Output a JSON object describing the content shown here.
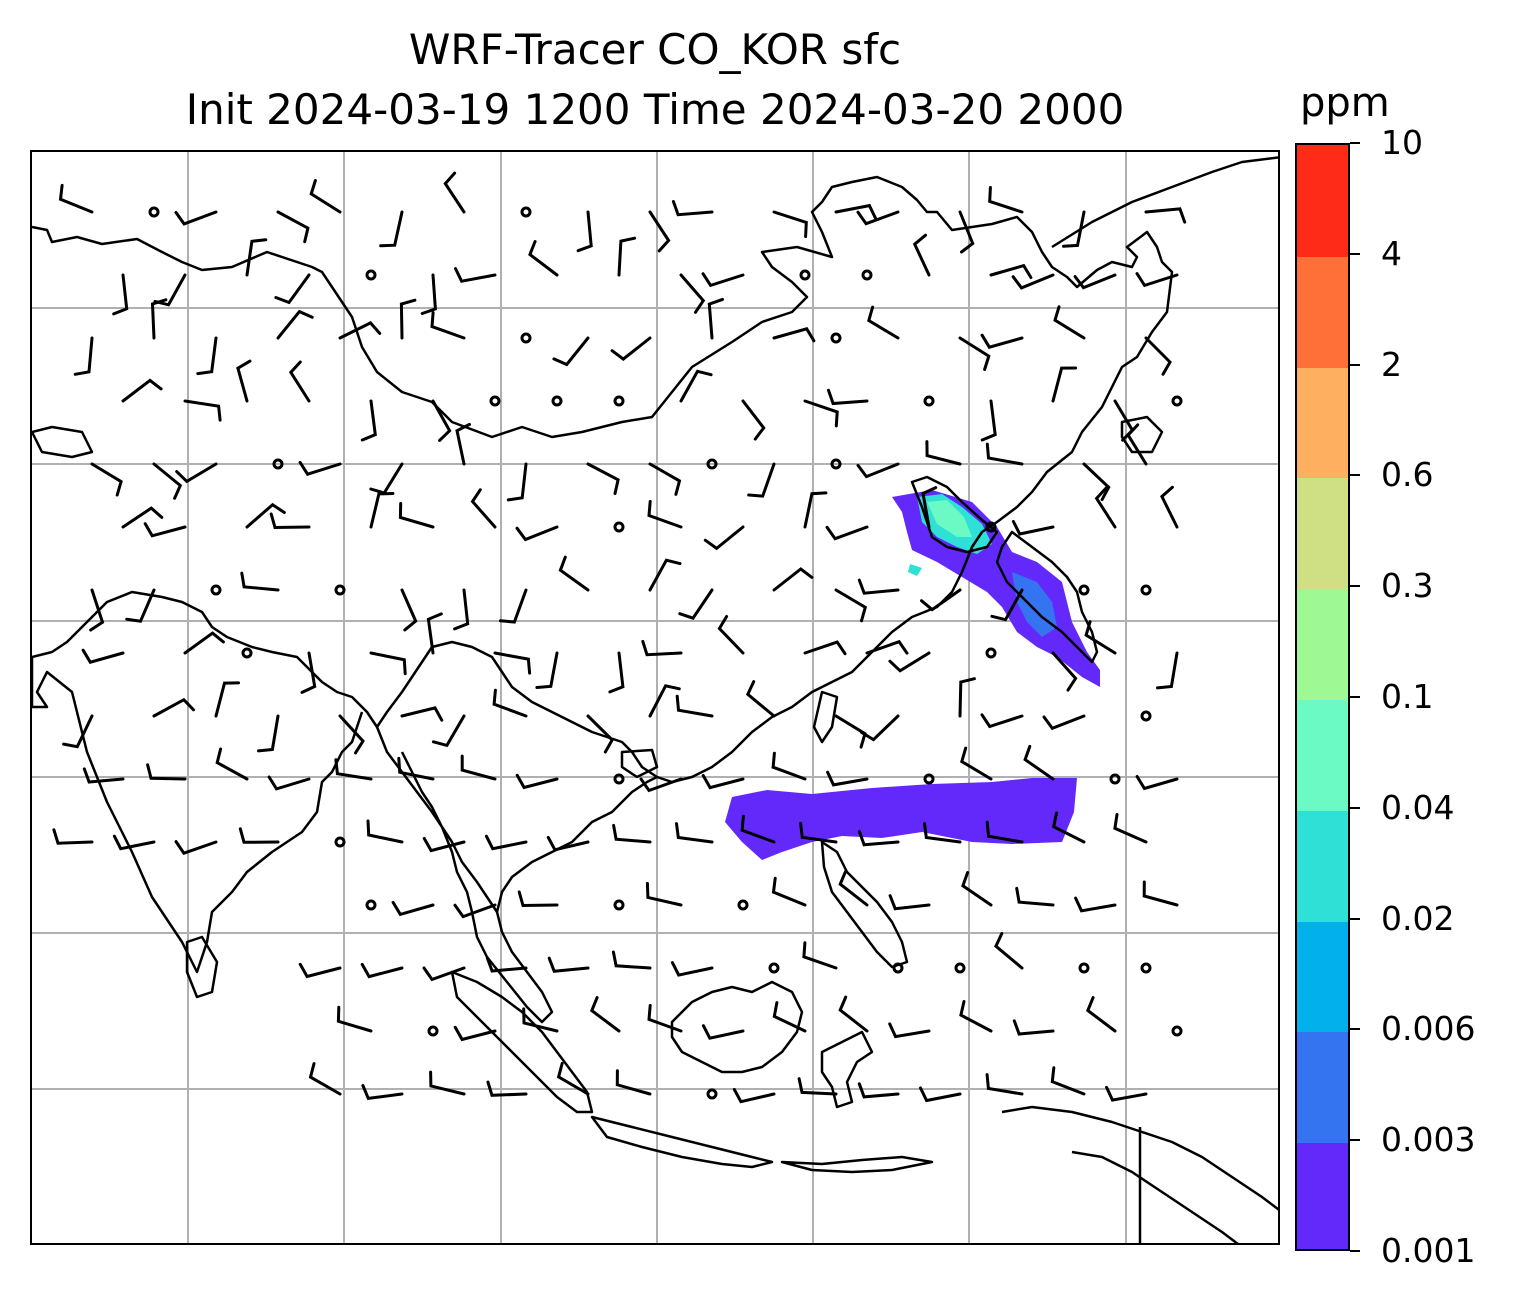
{
  "title": {
    "line1": "WRF-Tracer CO_KOR sfc",
    "line2": "Init 2024-03-19 1200 Time 2024-03-20 2000"
  },
  "colorbar": {
    "unit": "ppm",
    "levels": [
      "0.001",
      "0.003",
      "0.006",
      "0.02",
      "0.04",
      "0.1",
      "0.3",
      "0.6",
      "2",
      "4",
      "10"
    ],
    "colors": [
      "#6329fb",
      "#3474f1",
      "#02b1ec",
      "#2ee0d6",
      "#6bfac3",
      "#9ef994",
      "#cfe084",
      "#feb060",
      "#ff7038",
      "#fe2b18"
    ]
  },
  "map": {
    "coastline_color": "#000000",
    "gridline_color": "#b0b0b0",
    "plume_low_color": "#6329fb",
    "plume_mid_color": "#3474f1",
    "plume_high_color": "#6bfac3"
  }
}
